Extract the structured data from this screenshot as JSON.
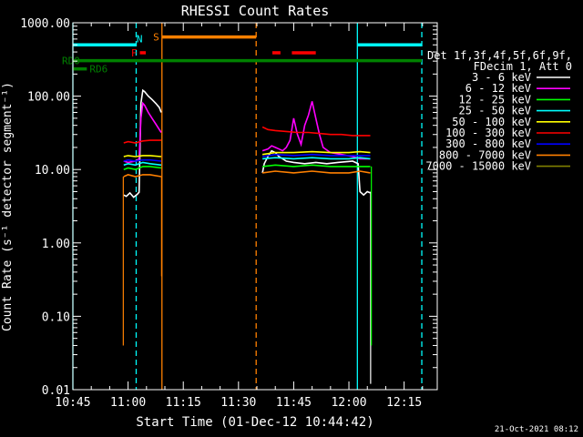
{
  "chart_data": {
    "type": "line",
    "title": "RHESSI Count Rates",
    "xlabel": "Start Time (01-Dec-12 10:44:42)",
    "ylabel": "Count Rate (s⁻¹ detector segment⁻¹)",
    "x_unit": "minutes from 10:45",
    "xlim": [
      0,
      99
    ],
    "ylim": [
      0.01,
      1000
    ],
    "y_scale": "log",
    "x_ticks": [
      {
        "v": 0,
        "label": "10:45"
      },
      {
        "v": 15,
        "label": "11:00"
      },
      {
        "v": 30,
        "label": "11:15"
      },
      {
        "v": 45,
        "label": "11:30"
      },
      {
        "v": 60,
        "label": "11:45"
      },
      {
        "v": 75,
        "label": "12:00"
      },
      {
        "v": 90,
        "label": "12:15"
      }
    ],
    "y_ticks": [
      {
        "v": 1000,
        "label": "1000.00"
      },
      {
        "v": 100,
        "label": "100.00"
      },
      {
        "v": 10,
        "label": "10.00"
      },
      {
        "v": 1,
        "label": "1.00"
      },
      {
        "v": 0.1,
        "label": "0.10"
      },
      {
        "v": 0.01,
        "label": "0.01"
      }
    ],
    "legend_header": [
      "Det 1f,3f,4f,5f,6f,9f,",
      "FDecim 1, Att 0"
    ],
    "legend_placement": "right",
    "footer_stamp": "21-Oct-2021 08:12",
    "series": [
      {
        "name": "3 - 6 keV",
        "color": "#ffffff",
        "segments": [
          [
            [
              13.8,
              4.5
            ],
            [
              14.5,
              4.3
            ],
            [
              15.5,
              4.8
            ],
            [
              16.5,
              4.2
            ],
            [
              17.5,
              4.6
            ],
            [
              18.0,
              4.9
            ],
            [
              18.5,
              80
            ],
            [
              19.0,
              120
            ],
            [
              19.5,
              115
            ],
            [
              20.5,
              100
            ],
            [
              21.5,
              90
            ],
            [
              22.5,
              80
            ],
            [
              23.5,
              70
            ],
            [
              24.0,
              60
            ]
          ],
          [
            [
              51.5,
              9
            ],
            [
              52.0,
              12
            ],
            [
              53.0,
              15
            ],
            [
              54.0,
              18
            ],
            [
              55.0,
              17
            ],
            [
              56.0,
              15
            ],
            [
              57.0,
              14
            ],
            [
              58.0,
              13
            ],
            [
              60.0,
              12.5
            ],
            [
              63.0,
              12
            ],
            [
              66.0,
              12.5
            ],
            [
              69.0,
              12
            ],
            [
              72.0,
              12.5
            ],
            [
              76.0,
              13
            ],
            [
              77.5,
              12
            ],
            [
              78.0,
              5
            ],
            [
              79.0,
              4.5
            ],
            [
              80.0,
              5
            ],
            [
              80.8,
              4.8
            ]
          ]
        ]
      },
      {
        "name": "6 - 12 keV",
        "color": "#ff00ff",
        "segments": [
          [
            [
              13.8,
              13
            ],
            [
              15.0,
              12.5
            ],
            [
              17.0,
              13
            ],
            [
              18.0,
              14
            ],
            [
              18.5,
              50
            ],
            [
              19.0,
              80
            ],
            [
              19.5,
              75
            ],
            [
              20.5,
              60
            ],
            [
              21.5,
              50
            ],
            [
              22.5,
              42
            ],
            [
              23.5,
              35
            ],
            [
              24.0,
              32
            ]
          ],
          [
            [
              51.5,
              18
            ],
            [
              53.0,
              19
            ],
            [
              54.0,
              21
            ],
            [
              55.0,
              20
            ],
            [
              56.0,
              19
            ],
            [
              57.0,
              18
            ],
            [
              58.0,
              20
            ],
            [
              59.0,
              25
            ],
            [
              60.0,
              50
            ],
            [
              61.0,
              30
            ],
            [
              62.0,
              22
            ],
            [
              63.0,
              40
            ],
            [
              64.0,
              55
            ],
            [
              65.0,
              85
            ],
            [
              66.0,
              50
            ],
            [
              67.0,
              30
            ],
            [
              68.0,
              20
            ],
            [
              70.0,
              17
            ],
            [
              73.0,
              16
            ],
            [
              76.0,
              15
            ],
            [
              78.0,
              14
            ],
            [
              80.8,
              14
            ]
          ]
        ]
      },
      {
        "name": "12 - 25 keV",
        "color": "#00ff00",
        "segments": [
          [
            [
              13.8,
              10
            ],
            [
              15.0,
              10.5
            ],
            [
              17.0,
              10
            ],
            [
              19.0,
              11
            ],
            [
              21.0,
              11
            ],
            [
              24.0,
              10.5
            ]
          ],
          [
            [
              51.5,
              11
            ],
            [
              55.0,
              11.5
            ],
            [
              60.0,
              11
            ],
            [
              65.0,
              11.5
            ],
            [
              70.0,
              11
            ],
            [
              75.0,
              11
            ],
            [
              78.0,
              11
            ],
            [
              80.8,
              11
            ]
          ]
        ]
      },
      {
        "name": "25 - 50 keV",
        "color": "#00ffff",
        "segments": [
          [
            [
              13.8,
              11.5
            ],
            [
              15.0,
              12
            ],
            [
              17.0,
              11.5
            ],
            [
              19.0,
              12.5
            ],
            [
              21.0,
              12
            ],
            [
              24.0,
              11.5
            ]
          ],
          [
            [
              51.5,
              14
            ],
            [
              55.0,
              14.5
            ],
            [
              60.0,
              14
            ],
            [
              65.0,
              14.5
            ],
            [
              70.0,
              14
            ],
            [
              75.0,
              14
            ],
            [
              78.0,
              14.5
            ],
            [
              80.8,
              14
            ]
          ]
        ]
      },
      {
        "name": "50 - 100 keV",
        "color": "#ffff00",
        "segments": [
          [
            [
              13.8,
              15
            ],
            [
              15.0,
              15.5
            ],
            [
              17.0,
              15
            ],
            [
              19.0,
              15.5
            ],
            [
              21.0,
              15.5
            ],
            [
              24.0,
              15
            ]
          ],
          [
            [
              51.5,
              16
            ],
            [
              55.0,
              17
            ],
            [
              60.0,
              17
            ],
            [
              65.0,
              17.5
            ],
            [
              70.0,
              17
            ],
            [
              75.0,
              17
            ],
            [
              78.0,
              17.5
            ],
            [
              80.8,
              17
            ]
          ]
        ]
      },
      {
        "name": "100 - 300 keV",
        "color": "#ff0000",
        "segments": [
          [
            [
              13.8,
              23
            ],
            [
              15.0,
              24
            ],
            [
              17.0,
              23
            ],
            [
              19.0,
              24.5
            ],
            [
              21.0,
              25
            ],
            [
              24.0,
              25
            ]
          ],
          [
            [
              51.5,
              38
            ],
            [
              53.0,
              35
            ],
            [
              55.0,
              34
            ],
            [
              58.0,
              33
            ],
            [
              61.0,
              32
            ],
            [
              64.0,
              32
            ],
            [
              67.0,
              31
            ],
            [
              70.0,
              30
            ],
            [
              73.0,
              30
            ],
            [
              76.0,
              29
            ],
            [
              78.0,
              29
            ],
            [
              80.8,
              29
            ]
          ]
        ]
      },
      {
        "name": "300 - 800 keV",
        "color": "#0000ff",
        "segments": [
          [
            [
              13.8,
              13
            ],
            [
              15.0,
              13.5
            ],
            [
              17.0,
              13
            ],
            [
              19.0,
              13.5
            ],
            [
              21.0,
              13.5
            ],
            [
              24.0,
              13
            ]
          ],
          [
            [
              51.5,
              15
            ],
            [
              55.0,
              16
            ],
            [
              60.0,
              15.5
            ],
            [
              65.0,
              16
            ],
            [
              70.0,
              15.5
            ],
            [
              75.0,
              15.5
            ],
            [
              78.0,
              15.5
            ],
            [
              80.8,
              15.5
            ]
          ]
        ]
      },
      {
        "name": "800 - 7000 keV",
        "color": "#ff8000",
        "segments": [
          [
            [
              13.8,
              8
            ],
            [
              15.0,
              8.5
            ],
            [
              17.0,
              8
            ],
            [
              19.0,
              8.5
            ],
            [
              21.0,
              8.5
            ],
            [
              24.0,
              8
            ]
          ],
          [
            [
              51.5,
              9
            ],
            [
              55.0,
              9.5
            ],
            [
              60.0,
              9
            ],
            [
              65.0,
              9.5
            ],
            [
              70.0,
              9
            ],
            [
              75.0,
              9
            ],
            [
              78.0,
              9.5
            ],
            [
              80.8,
              9
            ]
          ]
        ]
      },
      {
        "name": "7000 - 15000 keV",
        "color": "#808000",
        "segments": []
      }
    ],
    "drops": [
      {
        "color": "#ff8000",
        "x": 13.7,
        "from": 8,
        "to": 0.04
      },
      {
        "color": "#ff8000",
        "x": 24.1,
        "from": 8,
        "to": 0.35
      },
      {
        "color": "#ffffff",
        "x": 80.9,
        "from": 5,
        "to": 0.012
      },
      {
        "color": "#00ff00",
        "x": 81.1,
        "from": 11,
        "to": 0.04
      }
    ],
    "markers": [
      {
        "label": "",
        "color": "#00ffff",
        "style": "solid",
        "x": 0
      },
      {
        "label": "",
        "color": "#00ffff",
        "style": "dashed",
        "x": 17.2
      },
      {
        "label": "",
        "color": "#ff8000",
        "style": "solid",
        "x": 24.2
      },
      {
        "label": "",
        "color": "#ff8000",
        "style": "dashed",
        "x": 49.8
      },
      {
        "label": "",
        "color": "#00ffff",
        "style": "solid",
        "x": 77.3
      },
      {
        "label": "",
        "color": "#00ffff",
        "style": "dashed",
        "x": 94.8
      }
    ],
    "flag_bars": [
      {
        "label": "",
        "color": "#00ffff",
        "y": 500,
        "from": 0,
        "to": 17.2
      },
      {
        "label": "N",
        "color": "#00ffff",
        "y": 610,
        "from": 17.3,
        "to": 17.3
      },
      {
        "label": "F",
        "color": "#ff0000",
        "y": 390,
        "from": 18.2,
        "to": 19.8
      },
      {
        "label": "S",
        "color": "#ff8000",
        "y": 640,
        "from": 24.2,
        "to": 49.8
      },
      {
        "label": "",
        "color": "#ff0000",
        "y": 390,
        "from": 54.2,
        "to": 56.4
      },
      {
        "label": "",
        "color": "#ff0000",
        "y": 390,
        "from": 59.5,
        "to": 66.0
      },
      {
        "label": "",
        "color": "#00ffff",
        "y": 500,
        "from": 77.3,
        "to": 94.8
      },
      {
        "label": "RD0",
        "color": "#008000",
        "y": 305,
        "from": 0,
        "to": 94.8
      },
      {
        "label": "RD6",
        "color": "#008000",
        "y": 235,
        "from": 0,
        "to": 3.8
      }
    ]
  }
}
